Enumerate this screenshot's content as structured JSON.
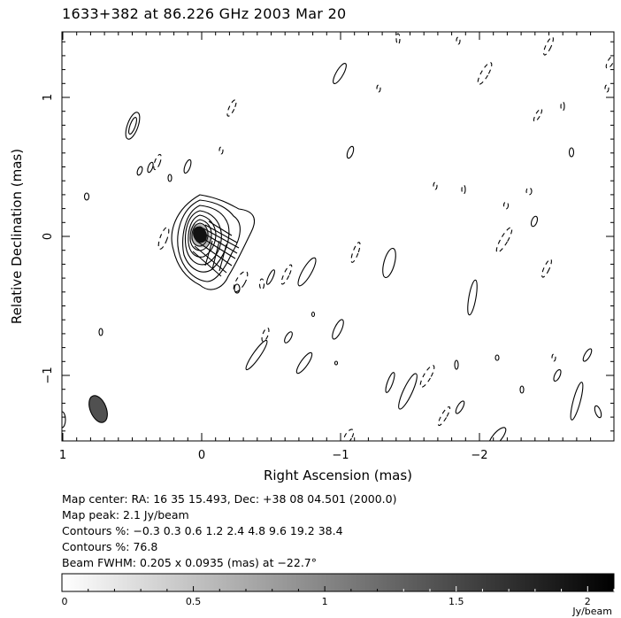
{
  "title": "1633+382 at 86.226 GHz 2003 Mar 20",
  "chart_data": {
    "type": "contour",
    "xlabel": "Right Ascension  (mas)",
    "ylabel": "Relative Declination  (mas)",
    "xlim": [
      1,
      -3
    ],
    "ylim": [
      -1.5,
      1.5
    ],
    "x_ticks": [
      1,
      0,
      -1,
      -2
    ],
    "x_tick_labels": [
      "1",
      "0",
      "−1",
      "−2"
    ],
    "y_ticks": [
      1,
      0,
      -1
    ],
    "y_tick_labels": [
      "1",
      "0",
      "−1"
    ],
    "core": {
      "ra": 0.0,
      "dec": 0.0
    },
    "beam": {
      "major_mas": 0.205,
      "minor_mas": 0.0935,
      "pa_deg": -22.7,
      "ra": 0.75,
      "dec": -1.25
    },
    "contour_levels_percent": [
      -0.3,
      0.3,
      0.6,
      1.2,
      2.4,
      4.8,
      9.6,
      19.2,
      38.4,
      76.8
    ],
    "colorbar": {
      "min": 0,
      "max": 2.1,
      "ticks": [
        "0",
        "0.5",
        "1",
        "1.5",
        "2"
      ],
      "tick_values": [
        0,
        0.5,
        1,
        1.5,
        2
      ],
      "unit": "Jy/beam"
    }
  },
  "info": {
    "map_center": "Map center:  RA: 16 35 15.493,  Dec: +38 08 04.501 (2000.0)",
    "map_peak": "Map peak: 2.1 Jy/beam",
    "contours_1": "Contours %: −0.3 0.3 0.6 1.2 2.4 4.8 9.6 19.2 38.4",
    "contours_2": "Contours %: 76.8",
    "beam": "Beam FWHM: 0.205 x 0.0935 (mas) at −22.7°"
  }
}
